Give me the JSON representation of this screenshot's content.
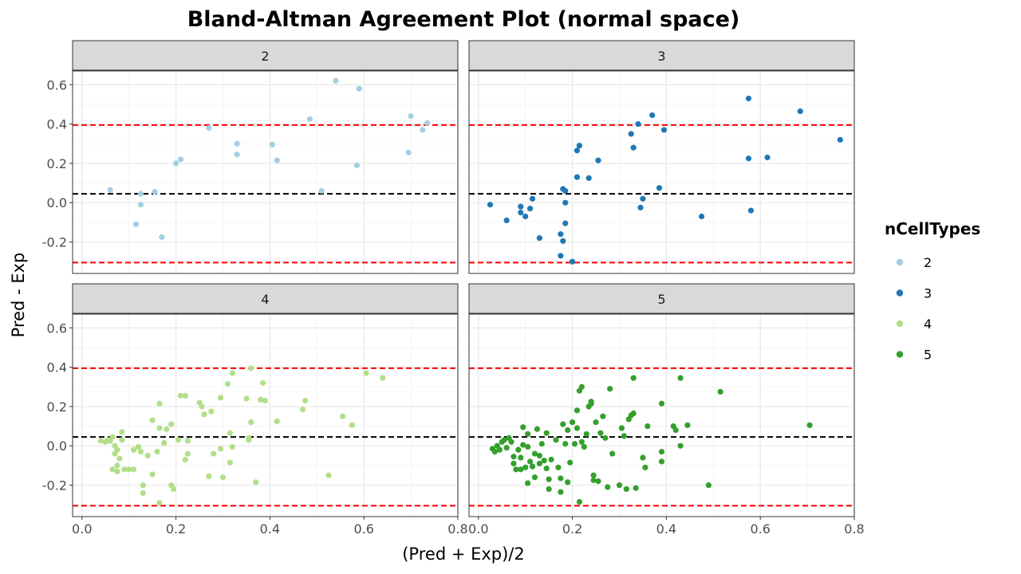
{
  "chart_data": {
    "type": "scatter",
    "title": "Bland-Altman Agreement Plot (normal space)",
    "xlabel": "(Pred + Exp)/2",
    "ylabel": "Pred - Exp",
    "xlim": [
      -0.02,
      0.8
    ],
    "ylim": [
      -0.36,
      0.67
    ],
    "x_ticks": [
      0.0,
      0.2,
      0.4,
      0.6,
      0.8
    ],
    "x_tick_labels": [
      "0.0",
      "0.2",
      "0.4",
      "0.6",
      "0.8"
    ],
    "y_ticks": [
      -0.2,
      0.0,
      0.2,
      0.4,
      0.6
    ],
    "y_tick_labels": [
      "-0.2",
      "0.0",
      "0.2",
      "0.4",
      "0.6"
    ],
    "grid": true,
    "facet_by": "nCellTypes",
    "reference_lines": {
      "mean_bias": 0.045,
      "upper_limit": 0.395,
      "lower_limit": -0.305,
      "mean_color": "#000000",
      "limit_color": "#ff0000"
    },
    "legend": {
      "title": "nCellTypes",
      "position": "right",
      "entries": [
        {
          "label": "2",
          "color": "#a6cee3"
        },
        {
          "label": "3",
          "color": "#1f78b4"
        },
        {
          "label": "4",
          "color": "#b2df8a"
        },
        {
          "label": "5",
          "color": "#33a02c"
        }
      ]
    },
    "series": [
      {
        "name": "2",
        "color": "#a6cee3",
        "points": [
          [
            0.06,
            0.065
          ],
          [
            0.125,
            0.045
          ],
          [
            0.155,
            0.055
          ],
          [
            0.125,
            -0.01
          ],
          [
            0.115,
            -0.11
          ],
          [
            0.17,
            -0.175
          ],
          [
            0.2,
            0.2
          ],
          [
            0.21,
            0.22
          ],
          [
            0.27,
            0.38
          ],
          [
            0.33,
            0.3
          ],
          [
            0.33,
            0.245
          ],
          [
            0.405,
            0.295
          ],
          [
            0.415,
            0.215
          ],
          [
            0.485,
            0.425
          ],
          [
            0.51,
            0.06
          ],
          [
            0.54,
            0.62
          ],
          [
            0.59,
            0.58
          ],
          [
            0.585,
            0.19
          ],
          [
            0.695,
            0.255
          ],
          [
            0.7,
            0.44
          ],
          [
            0.725,
            0.37
          ],
          [
            0.735,
            0.405
          ]
        ]
      },
      {
        "name": "3",
        "color": "#1f78b4",
        "points": [
          [
            0.025,
            -0.01
          ],
          [
            0.06,
            -0.09
          ],
          [
            0.09,
            -0.05
          ],
          [
            0.09,
            -0.02
          ],
          [
            0.1,
            -0.07
          ],
          [
            0.11,
            -0.03
          ],
          [
            0.115,
            0.02
          ],
          [
            0.13,
            -0.18
          ],
          [
            0.175,
            -0.16
          ],
          [
            0.175,
            -0.27
          ],
          [
            0.18,
            -0.195
          ],
          [
            0.18,
            0.07
          ],
          [
            0.185,
            0.06
          ],
          [
            0.185,
            0.0
          ],
          [
            0.185,
            -0.105
          ],
          [
            0.2,
            -0.3
          ],
          [
            0.21,
            0.13
          ],
          [
            0.21,
            0.265
          ],
          [
            0.215,
            0.29
          ],
          [
            0.235,
            0.125
          ],
          [
            0.255,
            0.215
          ],
          [
            0.325,
            0.35
          ],
          [
            0.33,
            0.28
          ],
          [
            0.34,
            0.4
          ],
          [
            0.345,
            -0.025
          ],
          [
            0.35,
            0.02
          ],
          [
            0.37,
            0.445
          ],
          [
            0.385,
            0.075
          ],
          [
            0.395,
            0.37
          ],
          [
            0.475,
            -0.07
          ],
          [
            0.575,
            0.53
          ],
          [
            0.575,
            0.225
          ],
          [
            0.58,
            -0.04
          ],
          [
            0.615,
            0.23
          ],
          [
            0.685,
            0.465
          ],
          [
            0.77,
            0.32
          ]
        ]
      },
      {
        "name": "4",
        "color": "#b2df8a",
        "points": [
          [
            0.04,
            0.025
          ],
          [
            0.05,
            0.02
          ],
          [
            0.055,
            0.03
          ],
          [
            0.06,
            0.025
          ],
          [
            0.065,
            0.045
          ],
          [
            0.07,
            0.0
          ],
          [
            0.075,
            -0.02
          ],
          [
            0.07,
            -0.04
          ],
          [
            0.075,
            -0.1
          ],
          [
            0.065,
            -0.12
          ],
          [
            0.075,
            -0.13
          ],
          [
            0.08,
            -0.065
          ],
          [
            0.085,
            0.07
          ],
          [
            0.085,
            0.03
          ],
          [
            0.09,
            -0.12
          ],
          [
            0.1,
            -0.12
          ],
          [
            0.11,
            -0.12
          ],
          [
            0.11,
            -0.02
          ],
          [
            0.12,
            -0.005
          ],
          [
            0.125,
            -0.03
          ],
          [
            0.13,
            -0.2
          ],
          [
            0.13,
            -0.24
          ],
          [
            0.14,
            -0.05
          ],
          [
            0.15,
            0.13
          ],
          [
            0.15,
            -0.145
          ],
          [
            0.16,
            -0.03
          ],
          [
            0.165,
            0.215
          ],
          [
            0.165,
            0.09
          ],
          [
            0.165,
            -0.29
          ],
          [
            0.175,
            0.015
          ],
          [
            0.18,
            0.085
          ],
          [
            0.19,
            0.11
          ],
          [
            0.19,
            -0.2
          ],
          [
            0.195,
            -0.22
          ],
          [
            0.205,
            0.03
          ],
          [
            0.21,
            0.255
          ],
          [
            0.22,
            0.255
          ],
          [
            0.22,
            -0.07
          ],
          [
            0.225,
            0.025
          ],
          [
            0.225,
            -0.04
          ],
          [
            0.25,
            0.22
          ],
          [
            0.255,
            0.2
          ],
          [
            0.26,
            0.16
          ],
          [
            0.27,
            -0.155
          ],
          [
            0.275,
            0.175
          ],
          [
            0.28,
            -0.04
          ],
          [
            0.295,
            0.245
          ],
          [
            0.295,
            -0.015
          ],
          [
            0.3,
            -0.16
          ],
          [
            0.31,
            0.315
          ],
          [
            0.315,
            -0.085
          ],
          [
            0.315,
            0.065
          ],
          [
            0.32,
            0.37
          ],
          [
            0.32,
            -0.005
          ],
          [
            0.35,
            0.24
          ],
          [
            0.355,
            0.03
          ],
          [
            0.355,
            0.04
          ],
          [
            0.36,
            0.12
          ],
          [
            0.36,
            0.395
          ],
          [
            0.37,
            -0.185
          ],
          [
            0.38,
            0.235
          ],
          [
            0.385,
            0.32
          ],
          [
            0.39,
            0.23
          ],
          [
            0.415,
            0.125
          ],
          [
            0.47,
            0.185
          ],
          [
            0.475,
            0.23
          ],
          [
            0.525,
            -0.15
          ],
          [
            0.555,
            0.15
          ],
          [
            0.575,
            0.105
          ],
          [
            0.605,
            0.37
          ],
          [
            0.64,
            0.345
          ]
        ]
      },
      {
        "name": "5",
        "color": "#33a02c",
        "points": [
          [
            0.03,
            -0.015
          ],
          [
            0.035,
            -0.03
          ],
          [
            0.04,
            0.0
          ],
          [
            0.045,
            -0.02
          ],
          [
            0.05,
            0.02
          ],
          [
            0.055,
            0.03
          ],
          [
            0.06,
            -0.01
          ],
          [
            0.065,
            0.04
          ],
          [
            0.07,
            0.02
          ],
          [
            0.075,
            -0.09
          ],
          [
            0.075,
            -0.055
          ],
          [
            0.08,
            -0.12
          ],
          [
            0.085,
            -0.02
          ],
          [
            0.09,
            -0.06
          ],
          [
            0.09,
            -0.12
          ],
          [
            0.095,
            0.095
          ],
          [
            0.095,
            0.005
          ],
          [
            0.1,
            -0.11
          ],
          [
            0.105,
            0.06
          ],
          [
            0.105,
            -0.005
          ],
          [
            0.105,
            -0.19
          ],
          [
            0.11,
            -0.08
          ],
          [
            0.115,
            -0.105
          ],
          [
            0.12,
            -0.04
          ],
          [
            0.12,
            -0.16
          ],
          [
            0.125,
            0.085
          ],
          [
            0.13,
            -0.05
          ],
          [
            0.13,
            -0.09
          ],
          [
            0.135,
            0.01
          ],
          [
            0.14,
            -0.075
          ],
          [
            0.145,
            0.065
          ],
          [
            0.145,
            -0.115
          ],
          [
            0.15,
            -0.17
          ],
          [
            0.15,
            -0.22
          ],
          [
            0.155,
            -0.07
          ],
          [
            0.165,
            0.03
          ],
          [
            0.17,
            -0.11
          ],
          [
            0.175,
            -0.165
          ],
          [
            0.175,
            -0.235
          ],
          [
            0.18,
            0.11
          ],
          [
            0.185,
            0.01
          ],
          [
            0.19,
            0.08
          ],
          [
            0.19,
            -0.185
          ],
          [
            0.195,
            -0.085
          ],
          [
            0.2,
            0.12
          ],
          [
            0.205,
            0.01
          ],
          [
            0.21,
            0.18
          ],
          [
            0.21,
            0.09
          ],
          [
            0.215,
            0.28
          ],
          [
            0.215,
            -0.285
          ],
          [
            0.22,
            0.3
          ],
          [
            0.22,
            0.02
          ],
          [
            0.225,
            -0.005
          ],
          [
            0.23,
            0.06
          ],
          [
            0.235,
            0.2
          ],
          [
            0.24,
            0.225
          ],
          [
            0.24,
            0.215
          ],
          [
            0.245,
            -0.15
          ],
          [
            0.245,
            -0.175
          ],
          [
            0.25,
            0.12
          ],
          [
            0.255,
            -0.18
          ],
          [
            0.26,
            0.065
          ],
          [
            0.265,
            0.15
          ],
          [
            0.27,
            0.04
          ],
          [
            0.275,
            -0.21
          ],
          [
            0.28,
            0.29
          ],
          [
            0.285,
            -0.04
          ],
          [
            0.3,
            -0.2
          ],
          [
            0.305,
            0.09
          ],
          [
            0.31,
            0.05
          ],
          [
            0.315,
            -0.22
          ],
          [
            0.32,
            0.135
          ],
          [
            0.325,
            0.155
          ],
          [
            0.33,
            0.345
          ],
          [
            0.33,
            0.165
          ],
          [
            0.335,
            -0.215
          ],
          [
            0.35,
            -0.06
          ],
          [
            0.355,
            -0.11
          ],
          [
            0.36,
            0.1
          ],
          [
            0.39,
            0.215
          ],
          [
            0.39,
            -0.03
          ],
          [
            0.39,
            -0.08
          ],
          [
            0.415,
            0.1
          ],
          [
            0.42,
            0.08
          ],
          [
            0.43,
            0.345
          ],
          [
            0.43,
            0.0
          ],
          [
            0.445,
            0.105
          ],
          [
            0.49,
            -0.2
          ],
          [
            0.515,
            0.275
          ],
          [
            0.705,
            0.105
          ]
        ]
      }
    ]
  }
}
